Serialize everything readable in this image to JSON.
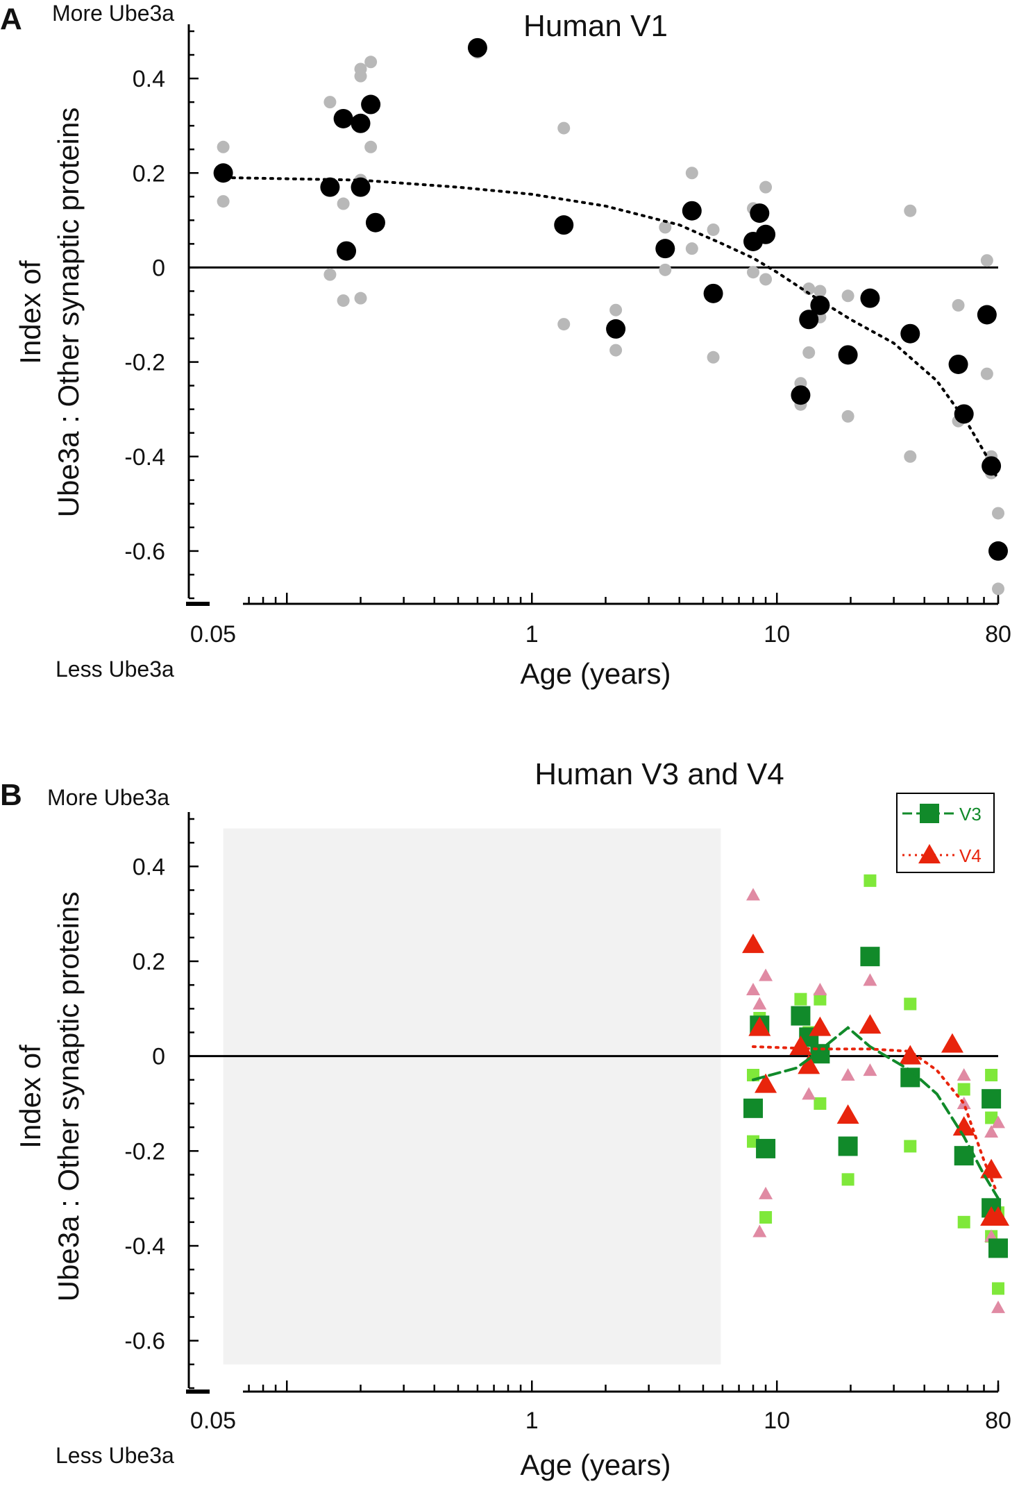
{
  "chart_data": [
    {
      "panel": "A",
      "type": "scatter",
      "title": "Human V1",
      "xlabel": "Age (years)",
      "ylabel_line1": "Index of",
      "ylabel_line2": "Ube3a : Other synaptic proteins",
      "top_note": "More Ube3a",
      "bottom_note": "Less Ube3a",
      "x_scale": "log",
      "xlim": [
        0.05,
        80
      ],
      "ylim": [
        -0.7,
        0.5
      ],
      "xticks": [
        {
          "v": 0.05,
          "label": "0.05"
        },
        {
          "v": 1,
          "label": "1"
        },
        {
          "v": 10,
          "label": "10"
        },
        {
          "v": 80,
          "label": "80"
        }
      ],
      "yticks": [
        {
          "v": 0.4,
          "label": "0.4"
        },
        {
          "v": 0.2,
          "label": "0.2"
        },
        {
          "v": 0,
          "label": "0"
        },
        {
          "v": -0.2,
          "label": "-0.2"
        },
        {
          "v": -0.4,
          "label": "-0.4"
        },
        {
          "v": -0.6,
          "label": "-0.6"
        }
      ],
      "series": [
        {
          "name": "individual replicates",
          "marker": "circle-small",
          "color": "#b8b8b8",
          "points": [
            [
              0.055,
              0.255
            ],
            [
              0.055,
              0.14
            ],
            [
              0.15,
              0.35
            ],
            [
              0.15,
              -0.015
            ],
            [
              0.17,
              0.135
            ],
            [
              0.17,
              -0.07
            ],
            [
              0.2,
              0.42
            ],
            [
              0.2,
              0.405
            ],
            [
              0.2,
              0.185
            ],
            [
              0.2,
              -0.065
            ],
            [
              0.22,
              0.435
            ],
            [
              0.22,
              0.255
            ],
            [
              0.6,
              0.47
            ],
            [
              0.6,
              0.455
            ],
            [
              1.35,
              0.295
            ],
            [
              1.35,
              -0.12
            ],
            [
              2.2,
              -0.09
            ],
            [
              2.2,
              -0.175
            ],
            [
              3.5,
              0.085
            ],
            [
              3.5,
              -0.005
            ],
            [
              4.5,
              0.2
            ],
            [
              4.5,
              0.04
            ],
            [
              5.5,
              0.08
            ],
            [
              5.5,
              -0.19
            ],
            [
              8.0,
              0.125
            ],
            [
              8.0,
              -0.01
            ],
            [
              9.0,
              0.17
            ],
            [
              9.0,
              -0.025
            ],
            [
              12.5,
              -0.245
            ],
            [
              12.5,
              -0.29
            ],
            [
              13.5,
              -0.045
            ],
            [
              13.5,
              -0.18
            ],
            [
              15.0,
              -0.05
            ],
            [
              15.0,
              -0.105
            ],
            [
              19.5,
              -0.06
            ],
            [
              19.5,
              -0.315
            ],
            [
              35,
              0.12
            ],
            [
              35,
              -0.4
            ],
            [
              55,
              -0.08
            ],
            [
              55,
              -0.325
            ],
            [
              72,
              0.015
            ],
            [
              72,
              -0.225
            ],
            [
              75,
              -0.4
            ],
            [
              75,
              -0.435
            ],
            [
              80,
              -0.52
            ],
            [
              80,
              -0.68
            ]
          ]
        },
        {
          "name": "sample mean",
          "marker": "circle-large",
          "color": "#000000",
          "points": [
            [
              0.055,
              0.2
            ],
            [
              0.15,
              0.17
            ],
            [
              0.17,
              0.315
            ],
            [
              0.175,
              0.035
            ],
            [
              0.2,
              0.305
            ],
            [
              0.2,
              0.17
            ],
            [
              0.22,
              0.345
            ],
            [
              0.23,
              0.095
            ],
            [
              0.6,
              0.465
            ],
            [
              1.35,
              0.09
            ],
            [
              2.2,
              -0.13
            ],
            [
              3.5,
              0.04
            ],
            [
              4.5,
              0.12
            ],
            [
              5.5,
              -0.055
            ],
            [
              8.0,
              0.055
            ],
            [
              8.5,
              0.115
            ],
            [
              9.0,
              0.07
            ],
            [
              12.5,
              -0.27
            ],
            [
              13.5,
              -0.11
            ],
            [
              15.0,
              -0.08
            ],
            [
              19.5,
              -0.185
            ],
            [
              24,
              -0.065
            ],
            [
              35,
              -0.14
            ],
            [
              55,
              -0.205
            ],
            [
              58,
              -0.31
            ],
            [
              72,
              -0.1
            ],
            [
              75,
              -0.42
            ],
            [
              80,
              -0.6
            ]
          ]
        },
        {
          "name": "trend",
          "marker": "dotted-line",
          "color": "#000000",
          "points": [
            [
              0.06,
              0.19
            ],
            [
              0.2,
              0.185
            ],
            [
              0.5,
              0.17
            ],
            [
              1,
              0.155
            ],
            [
              2,
              0.13
            ],
            [
              4,
              0.09
            ],
            [
              6,
              0.05
            ],
            [
              8,
              0.02
            ],
            [
              10,
              -0.01
            ],
            [
              14,
              -0.06
            ],
            [
              20,
              -0.11
            ],
            [
              30,
              -0.16
            ],
            [
              45,
              -0.24
            ],
            [
              60,
              -0.33
            ],
            [
              72,
              -0.4
            ],
            [
              80,
              -0.45
            ]
          ]
        }
      ]
    },
    {
      "panel": "B",
      "type": "scatter",
      "title": "Human V3 and V4",
      "xlabel": "Age (years)",
      "ylabel_line1": "Index of",
      "ylabel_line2": "Ube3a : Other synaptic proteins",
      "top_note": "More Ube3a",
      "bottom_note": "Less Ube3a",
      "x_scale": "log",
      "xlim": [
        0.05,
        80
      ],
      "ylim": [
        -0.7,
        0.5
      ],
      "xticks": [
        {
          "v": 0.05,
          "label": "0.05"
        },
        {
          "v": 1,
          "label": "1"
        },
        {
          "v": 10,
          "label": "10"
        },
        {
          "v": 80,
          "label": "80"
        }
      ],
      "yticks": [
        {
          "v": 0.4,
          "label": "0.4"
        },
        {
          "v": 0.2,
          "label": "0.2"
        },
        {
          "v": 0,
          "label": "0"
        },
        {
          "v": -0.2,
          "label": "-0.2"
        },
        {
          "v": -0.4,
          "label": "-0.4"
        },
        {
          "v": -0.6,
          "label": "-0.6"
        }
      ],
      "shaded_region": {
        "x": [
          0.055,
          5.9
        ],
        "y": [
          -0.65,
          0.48
        ],
        "color": "#f2f2f2"
      },
      "legend": [
        {
          "label": "V3",
          "color": "#118a2a",
          "marker": "square",
          "line": "dashed"
        },
        {
          "label": "V4",
          "color": "#e8240c",
          "marker": "triangle",
          "line": "dotted"
        }
      ],
      "series": [
        {
          "name": "V3 replicates",
          "marker": "square-small",
          "color": "#7fe83a",
          "points": [
            [
              8.0,
              -0.04
            ],
            [
              8.0,
              -0.18
            ],
            [
              8.5,
              0.08
            ],
            [
              9.0,
              -0.34
            ],
            [
              12.5,
              0.12
            ],
            [
              13.5,
              0.05
            ],
            [
              15.0,
              0.12
            ],
            [
              15.0,
              -0.1
            ],
            [
              19.5,
              -0.26
            ],
            [
              24,
              0.37
            ],
            [
              35,
              0.11
            ],
            [
              35,
              -0.19
            ],
            [
              58,
              -0.07
            ],
            [
              58,
              -0.35
            ],
            [
              75,
              -0.04
            ],
            [
              75,
              -0.13
            ],
            [
              80,
              -0.33
            ],
            [
              80,
              -0.49
            ],
            [
              75,
              -0.38
            ]
          ]
        },
        {
          "name": "V4 replicates",
          "marker": "triangle-small",
          "color": "#e08aa3",
          "points": [
            [
              8.0,
              0.34
            ],
            [
              8.0,
              0.14
            ],
            [
              8.5,
              0.11
            ],
            [
              9.0,
              0.17
            ],
            [
              9.0,
              -0.29
            ],
            [
              8.5,
              -0.37
            ],
            [
              13.5,
              -0.08
            ],
            [
              15.0,
              0.14
            ],
            [
              19.5,
              -0.04
            ],
            [
              24,
              0.16
            ],
            [
              24,
              -0.03
            ],
            [
              58,
              -0.1
            ],
            [
              58,
              -0.04
            ],
            [
              75,
              -0.16
            ],
            [
              75,
              -0.38
            ],
            [
              80,
              -0.14
            ],
            [
              80,
              -0.53
            ]
          ]
        },
        {
          "name": "V3 mean",
          "marker": "square-large",
          "color": "#118a2a",
          "points": [
            [
              8.0,
              -0.11
            ],
            [
              8.5,
              0.065
            ],
            [
              9.0,
              -0.195
            ],
            [
              12.5,
              0.085
            ],
            [
              13.5,
              0.04
            ],
            [
              15.0,
              0.005
            ],
            [
              19.5,
              -0.19
            ],
            [
              24,
              0.21
            ],
            [
              35,
              -0.045
            ],
            [
              58,
              -0.21
            ],
            [
              75,
              -0.32
            ],
            [
              75,
              -0.09
            ],
            [
              80,
              -0.405
            ]
          ]
        },
        {
          "name": "V4 mean",
          "marker": "triangle-large",
          "color": "#e8240c",
          "points": [
            [
              8.0,
              0.235
            ],
            [
              8.5,
              0.06
            ],
            [
              9.0,
              -0.06
            ],
            [
              12.5,
              0.02
            ],
            [
              13.5,
              -0.02
            ],
            [
              15.0,
              0.06
            ],
            [
              19.5,
              -0.125
            ],
            [
              24,
              0.065
            ],
            [
              35,
              0.0
            ],
            [
              52,
              0.025
            ],
            [
              58,
              -0.15
            ],
            [
              75,
              -0.24
            ],
            [
              75,
              -0.34
            ],
            [
              80,
              -0.34
            ]
          ]
        },
        {
          "name": "V3 trend",
          "marker": "dashed-line",
          "color": "#118a2a",
          "points": [
            [
              8.0,
              -0.05
            ],
            [
              12,
              -0.025
            ],
            [
              14,
              0.0
            ],
            [
              19.5,
              0.06
            ],
            [
              24,
              0.02
            ],
            [
              35,
              -0.03
            ],
            [
              45,
              -0.08
            ],
            [
              58,
              -0.17
            ],
            [
              70,
              -0.25
            ],
            [
              80,
              -0.3
            ]
          ]
        },
        {
          "name": "V4 trend",
          "marker": "dotted-line",
          "color": "#e8240c",
          "points": [
            [
              8.0,
              0.02
            ],
            [
              15,
              0.015
            ],
            [
              24,
              0.015
            ],
            [
              35,
              0.01
            ],
            [
              45,
              -0.03
            ],
            [
              58,
              -0.1
            ],
            [
              70,
              -0.22
            ],
            [
              78,
              -0.28
            ]
          ]
        }
      ]
    }
  ]
}
